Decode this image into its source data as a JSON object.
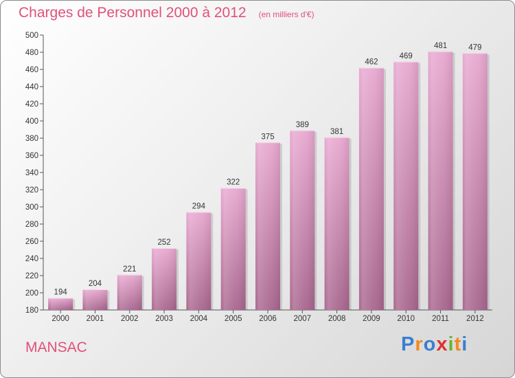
{
  "title": "Charges de Personnel 2000 à 2012",
  "subtitle": "(en milliers d'€)",
  "commune": "MANSAC",
  "logo": {
    "letters": [
      "P",
      "r",
      "o",
      "x",
      "i",
      "t",
      "i"
    ],
    "colors": [
      "#3a7fd0",
      "#f08a1c",
      "#3a7fd0",
      "#e03030",
      "#6bb12b",
      "#f08a1c",
      "#3a7fd0"
    ]
  },
  "colors": {
    "title": "#e0507a",
    "bar_top": "#e8a8d0",
    "bar_bottom": "#a8668e"
  },
  "chart_data": {
    "type": "bar",
    "categories": [
      "2000",
      "2001",
      "2002",
      "2003",
      "2004",
      "2005",
      "2006",
      "2007",
      "2008",
      "2009",
      "2010",
      "2011",
      "2012"
    ],
    "values": [
      194,
      204,
      221,
      252,
      294,
      322,
      375,
      389,
      381,
      462,
      469,
      481,
      479
    ],
    "ylim": [
      180,
      500
    ],
    "yticks": [
      180,
      200,
      220,
      240,
      260,
      280,
      300,
      320,
      340,
      360,
      380,
      400,
      420,
      440,
      460,
      480,
      500
    ],
    "grid": false,
    "data_labels": true
  }
}
